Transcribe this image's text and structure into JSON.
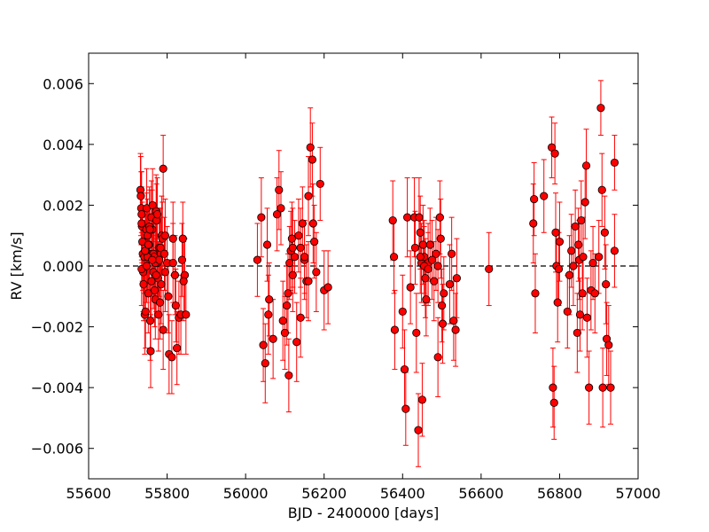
{
  "chart_data": {
    "type": "scatter",
    "xlabel": "BJD - 2400000 [days]",
    "ylabel": "RV [km/s]",
    "xlim": [
      55600,
      57000
    ],
    "ylim": [
      -0.007,
      0.007
    ],
    "x_ticks": [
      55600,
      55800,
      56000,
      56200,
      56400,
      56600,
      56800,
      57000
    ],
    "x_tick_labels": [
      "55600",
      "55800",
      "56000",
      "56200",
      "56400",
      "56600",
      "56800",
      "57000"
    ],
    "y_ticks": [
      -0.006,
      -0.004,
      -0.002,
      0.0,
      0.002,
      0.004,
      0.006
    ],
    "y_tick_labels": [
      "−0.006",
      "−0.004",
      "−0.002",
      "0.000",
      "0.002",
      "0.004",
      "0.006"
    ],
    "reference_line": {
      "y": 0.0,
      "style": "dashed",
      "color": "#000000"
    },
    "grid": false,
    "legend": "none",
    "colors": {
      "marker": "#ff0000",
      "marker_edge": "#000000",
      "errorbar": "#ff0000"
    },
    "series": [
      {
        "x": [
          55732,
          55733,
          55734,
          55735,
          55736,
          55737,
          55738,
          55739,
          55740,
          55742,
          55743,
          55745,
          55747,
          55748,
          55750,
          55752,
          55754,
          55755,
          55757,
          55758,
          55760,
          55762,
          55763,
          55765,
          55767,
          55768,
          55770,
          55772,
          55773,
          55775,
          55777,
          55778,
          55780,
          55782,
          55784,
          55786,
          55788,
          55790,
          55795,
          55800,
          55805,
          55812,
          55815,
          55820,
          55825,
          55830,
          55835,
          55840,
          55845,
          55848,
          55750,
          55760,
          55770,
          55780,
          55790,
          55735,
          55745,
          55755,
          55765,
          55775,
          55785,
          55795,
          55735,
          55744,
          55748,
          55752,
          55756,
          55762,
          55772,
          55783,
          55793,
          55803,
          55815,
          55822,
          55838,
          55842
        ],
        "y": [
          0.0025,
          0.0023,
          0.0019,
          0.0017,
          0.0013,
          0.0008,
          0.0004,
          -0.0002,
          -0.0006,
          0.0003,
          -0.0016,
          -0.0015,
          0.0012,
          0.0019,
          0.001,
          -0.0009,
          0.0007,
          0.0004,
          -0.0018,
          -0.0028,
          0.0016,
          0.0012,
          0.002,
          0.0004,
          0.0003,
          -0.0008,
          -0.0011,
          0.0018,
          0.0015,
          0.0001,
          -0.0004,
          -0.0016,
          0.0006,
          -0.0012,
          0.0004,
          0.001,
          0.0009,
          0.0032,
          -0.0002,
          0.0001,
          -0.0029,
          -0.003,
          0.0009,
          -0.0003,
          -0.0027,
          -0.0017,
          -0.0016,
          0.0009,
          -0.0003,
          -0.0016,
          0.0003,
          -0.0005,
          0.0001,
          0.0002,
          -0.0021,
          0.0014,
          0.0005,
          0.0013,
          -0.0002,
          0.0017,
          -0.0006,
          0.001,
          -0.0001,
          0.0005,
          0.0,
          0.0007,
          0.0012,
          0.0002,
          -0.0003,
          0.0006,
          0.0004,
          -0.001,
          0.0001,
          -0.0013,
          0.0002,
          -0.0005
        ],
        "err": [
          0.0012,
          0.0013,
          0.0012,
          0.0014,
          0.0012,
          0.0013,
          0.0012,
          0.0013,
          0.0012,
          0.0012,
          0.0013,
          0.0012,
          0.0012,
          0.0013,
          0.0012,
          0.0013,
          0.0012,
          0.0012,
          0.0013,
          0.0012,
          0.0012,
          0.0013,
          0.0012,
          0.0012,
          0.0013,
          0.0012,
          0.0013,
          0.0012,
          0.0012,
          0.0013,
          0.0012,
          0.0012,
          0.0013,
          0.0012,
          0.0012,
          0.0013,
          0.0012,
          0.0011,
          0.0013,
          0.0012,
          0.0013,
          0.0012,
          0.0012,
          0.0013,
          0.0012,
          0.0012,
          0.0013,
          0.0012,
          0.0012,
          0.0013,
          0.0012,
          0.0012,
          0.0013,
          0.0012,
          0.0013,
          0.0012,
          0.0012,
          0.0013,
          0.0012,
          0.0012,
          0.0013,
          0.0012,
          0.0012,
          0.0013,
          0.0012,
          0.0012,
          0.0013,
          0.0012,
          0.0012,
          0.0013,
          0.0012,
          0.0012,
          0.0013,
          0.0012,
          0.0012,
          0.0013
        ]
      },
      {
        "x": [
          56030,
          56040,
          56045,
          56050,
          56055,
          56058,
          56060,
          56070,
          56080,
          56085,
          56090,
          56095,
          56100,
          56105,
          56110,
          56115,
          56118,
          56120,
          56125,
          56130,
          56135,
          56140,
          56145,
          56150,
          56155,
          56160,
          56165,
          56170,
          56172,
          56175,
          56180,
          56190,
          56200,
          56210,
          56140,
          56150,
          56160,
          56120,
          56108,
          56112
        ],
        "y": [
          0.0002,
          0.0016,
          -0.0026,
          -0.0032,
          0.0007,
          -0.0016,
          -0.0011,
          -0.0024,
          0.0017,
          0.0025,
          0.0019,
          -0.0018,
          -0.0022,
          -0.0013,
          -0.0036,
          0.0005,
          0.0009,
          0.0006,
          0.0003,
          -0.0025,
          0.001,
          -0.0017,
          0.0014,
          0.0002,
          -0.0005,
          0.0023,
          0.0039,
          0.0035,
          0.0014,
          0.0008,
          -0.0002,
          0.0027,
          -0.0008,
          -0.0007,
          0.0006,
          0.0003,
          -0.0005,
          -0.0003,
          -0.0009,
          0.0001
        ],
        "err": [
          0.0012,
          0.0013,
          0.0012,
          0.0013,
          0.0012,
          0.0013,
          0.0012,
          0.0013,
          0.0012,
          0.0013,
          0.0012,
          0.0013,
          0.0012,
          0.0013,
          0.0012,
          0.0013,
          0.0012,
          0.0013,
          0.0012,
          0.0013,
          0.0012,
          0.0013,
          0.0012,
          0.0013,
          0.0012,
          0.0013,
          0.0013,
          0.0012,
          0.0013,
          0.0012,
          0.0013,
          0.0012,
          0.0013,
          0.0012,
          0.0013,
          0.0012,
          0.0013,
          0.0012,
          0.0013,
          0.0012
        ]
      },
      {
        "x": [
          56375,
          56378,
          56380,
          56400,
          56405,
          56408,
          56412,
          56420,
          56430,
          56432,
          56435,
          56440,
          56442,
          56445,
          56448,
          56450,
          56452,
          56455,
          56458,
          56460,
          56465,
          56470,
          56480,
          56485,
          56490,
          56495,
          56497,
          56500,
          56502,
          56505,
          56520,
          56525,
          56530,
          56535,
          56538,
          56445,
          56455,
          56465,
          56475,
          56490
        ],
        "y": [
          0.0015,
          0.0003,
          -0.0021,
          -0.0015,
          -0.0034,
          -0.0047,
          0.0016,
          -0.0007,
          0.0016,
          0.0006,
          -0.0022,
          -0.0054,
          0.0016,
          0.0011,
          0.0001,
          -0.0044,
          0.0007,
          0.0003,
          -0.0004,
          -0.0011,
          0.0001,
          0.0007,
          -0.0005,
          0.0004,
          -0.003,
          0.0016,
          0.0009,
          -0.0013,
          -0.0019,
          -0.0009,
          -0.0006,
          0.0004,
          -0.0018,
          -0.0021,
          -0.0004,
          0.0003,
          0.0,
          -0.0001,
          0.0002,
          0.0
        ],
        "err": [
          0.0013,
          0.0012,
          0.0013,
          0.0012,
          0.0013,
          0.0012,
          0.0013,
          0.0012,
          0.0013,
          0.0012,
          0.0013,
          0.0012,
          0.0013,
          0.0012,
          0.0013,
          0.0012,
          0.0013,
          0.0012,
          0.0013,
          0.0012,
          0.0013,
          0.0012,
          0.0013,
          0.0012,
          0.0013,
          0.0012,
          0.0013,
          0.0012,
          0.0013,
          0.0012,
          0.0013,
          0.0012,
          0.0013,
          0.0012,
          0.0013,
          0.0012,
          0.0013,
          0.0012,
          0.0013,
          0.0012
        ]
      },
      {
        "x": [
          56620
        ],
        "y": [
          -0.0001
        ],
        "err": [
          0.0012
        ]
      },
      {
        "x": [
          56733,
          56735,
          56738,
          56760,
          56780,
          56783,
          56786,
          56788,
          56790,
          56792,
          56795,
          56798,
          56800,
          56820,
          56825,
          56830,
          56835,
          56840,
          56845,
          56848,
          56850,
          56852,
          56855,
          56858,
          56860,
          56865,
          56868,
          56870,
          56875,
          56880,
          56885,
          56890,
          56900,
          56905,
          56908,
          56910,
          56915,
          56918,
          56920,
          56925,
          56930,
          56940,
          56940
        ],
        "y": [
          0.0014,
          0.0022,
          -0.0009,
          0.0023,
          0.0039,
          -0.004,
          -0.0045,
          0.0037,
          0.0011,
          0.0,
          -0.0012,
          -0.0001,
          0.0008,
          -0.0015,
          -0.0003,
          0.0005,
          0.0,
          0.0013,
          -0.0022,
          0.0007,
          0.0002,
          -0.0016,
          0.0015,
          -0.0009,
          0.0003,
          0.0021,
          0.0033,
          -0.0017,
          -0.004,
          -0.0008,
          0.0001,
          -0.0009,
          0.0003,
          0.0052,
          0.0025,
          -0.004,
          0.0011,
          -0.0006,
          -0.0024,
          -0.0026,
          -0.004,
          0.0034,
          0.0005
        ],
        "err": [
          0.0013,
          0.0012,
          0.0013,
          0.0012,
          0.001,
          0.0013,
          0.0012,
          0.001,
          0.0013,
          0.0012,
          0.0013,
          0.0012,
          0.0013,
          0.0012,
          0.0013,
          0.0012,
          0.0013,
          0.0012,
          0.0013,
          0.0012,
          0.0013,
          0.0012,
          0.0013,
          0.0012,
          0.0013,
          0.0012,
          0.0012,
          0.0013,
          0.0012,
          0.0013,
          0.0012,
          0.0013,
          0.0012,
          0.0009,
          0.0012,
          0.0013,
          0.0012,
          0.0013,
          0.0012,
          0.0013,
          0.0012,
          0.0009,
          0.0012
        ]
      }
    ]
  }
}
